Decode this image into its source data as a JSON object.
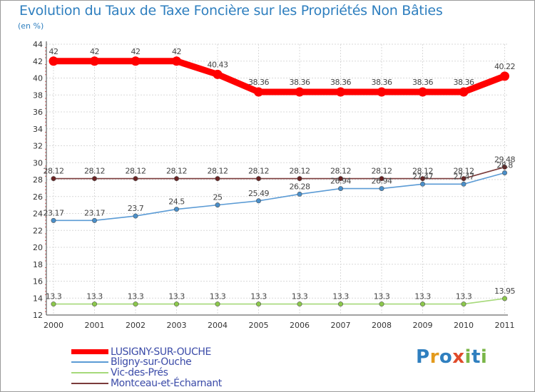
{
  "title": "Evolution du Taux de Taxe Foncière sur les Propriétés Non Bâties",
  "subtitle": "(en %)",
  "logo": {
    "text": "Proxiti",
    "letters": [
      "P",
      "r",
      "o",
      "x",
      "i",
      "t",
      "i"
    ],
    "colors": [
      "#2f7fbf",
      "#e39a1c",
      "#2f7fbf",
      "#e04a2a",
      "#7ab648",
      "#2f7fbf",
      "#7ab648"
    ]
  },
  "chart_data": {
    "type": "line",
    "title": "Evolution du Taux de Taxe Foncière sur les Propriétés Non Bâties",
    "ylabel": "(en %)",
    "xlabel": "",
    "ylim": [
      12,
      44
    ],
    "yticks": [
      "12",
      "14",
      "16",
      "18",
      "20",
      "22",
      "24",
      "26",
      "28",
      "30",
      "32",
      "34",
      "36",
      "38",
      "40",
      "42",
      "44"
    ],
    "categories": [
      "2000",
      "2001",
      "2002",
      "2003",
      "2004",
      "2005",
      "2006",
      "2007",
      "2008",
      "2009",
      "2010",
      "2011"
    ],
    "series": [
      {
        "name": "LUSIGNY-SUR-OUCHE",
        "color": "#ff0000",
        "marker": "#ff0000",
        "values": [
          42,
          42,
          42,
          42,
          40.43,
          38.36,
          38.36,
          38.36,
          38.36,
          38.36,
          38.36,
          40.22
        ],
        "labels": [
          "42",
          "42",
          "42",
          "42",
          "40.43",
          "38.36",
          "38.36",
          "38.36",
          "38.36",
          "38.36",
          "38.36",
          "40.22"
        ]
      },
      {
        "name": "Bligny-sur-Ouche",
        "color": "#5b9bd5",
        "marker": "#4a8fc9",
        "values": [
          23.17,
          23.17,
          23.7,
          24.5,
          25,
          25.49,
          26.28,
          26.94,
          26.94,
          27.47,
          27.47,
          28.8
        ],
        "labels": [
          "23.17",
          "23.17",
          "23.7",
          "24.5",
          "25",
          "25.49",
          "26.28",
          "26.94",
          "26.94",
          "27.47",
          "27.47",
          "28.8"
        ]
      },
      {
        "name": "Vic-des-Prés",
        "color": "#a6d97a",
        "marker": "#8cc84b",
        "values": [
          13.3,
          13.3,
          13.3,
          13.3,
          13.3,
          13.3,
          13.3,
          13.3,
          13.3,
          13.3,
          13.3,
          13.95
        ],
        "labels": [
          "13.3",
          "13.3",
          "13.3",
          "13.3",
          "13.3",
          "13.3",
          "13.3",
          "13.3",
          "13.3",
          "13.3",
          "13.3",
          "13.95"
        ]
      },
      {
        "name": "Montceau-et-Écharnant",
        "color": "#7b3b3b",
        "marker": "#6b2323",
        "values": [
          28.12,
          28.12,
          28.12,
          28.12,
          28.12,
          28.12,
          28.12,
          28.12,
          28.12,
          28.12,
          28.12,
          29.48
        ],
        "labels": [
          "28.12",
          "28.12",
          "28.12",
          "28.12",
          "28.12",
          "28.12",
          "28.12",
          "28.12",
          "28.12",
          "28.12",
          "28.12",
          "29.48"
        ]
      }
    ],
    "grid": true,
    "legend": "bottom-left"
  }
}
